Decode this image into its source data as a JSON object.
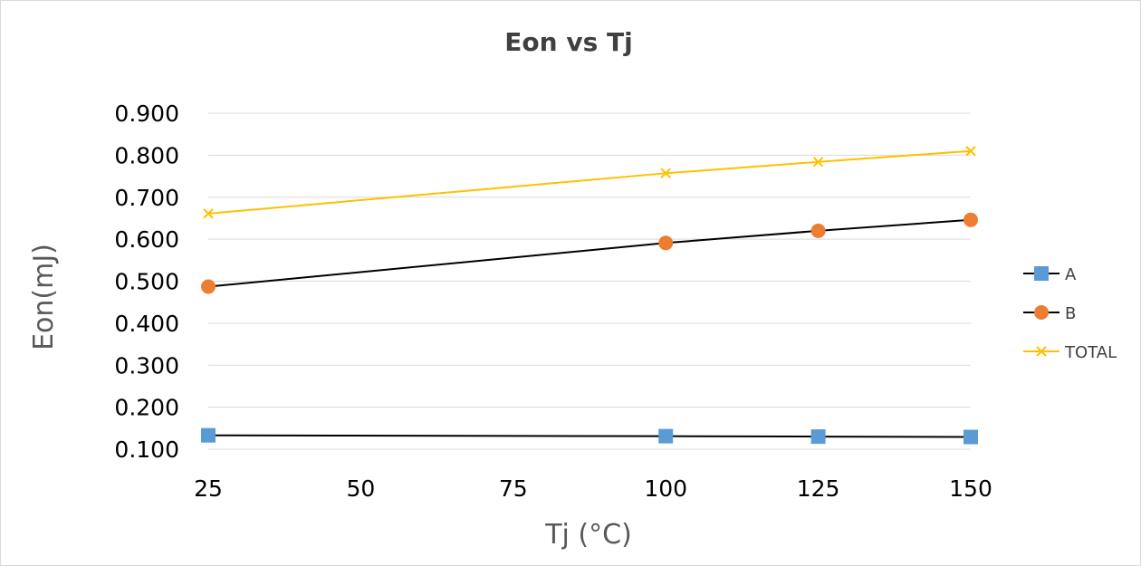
{
  "chart_data": {
    "type": "line",
    "title": "Eon vs Tj",
    "xlabel": "Tj (°C)",
    "ylabel": "Eon(mJ)",
    "x_ticks": [
      25,
      50,
      75,
      100,
      125,
      150
    ],
    "y_ticks": [
      "0.100",
      "0.200",
      "0.300",
      "0.400",
      "0.500",
      "0.600",
      "0.700",
      "0.800",
      "0.900"
    ],
    "xlim": [
      25,
      150
    ],
    "ylim": [
      0.1,
      0.9
    ],
    "grid": true,
    "legend_position": "right",
    "x": [
      25,
      100,
      125,
      150
    ],
    "series": [
      {
        "name": "A",
        "values": [
          0.133,
          0.131,
          0.13,
          0.129
        ],
        "color": "#5b9bd5",
        "marker": "square",
        "line_color": "#000000"
      },
      {
        "name": "B",
        "values": [
          0.487,
          0.591,
          0.62,
          0.646
        ],
        "color": "#ed7d31",
        "marker": "circle",
        "line_color": "#000000"
      },
      {
        "name": "TOTAL",
        "values": [
          0.661,
          0.757,
          0.784,
          0.81
        ],
        "color": "#ffc000",
        "marker": "x",
        "line_color": "#ffc000"
      }
    ]
  }
}
